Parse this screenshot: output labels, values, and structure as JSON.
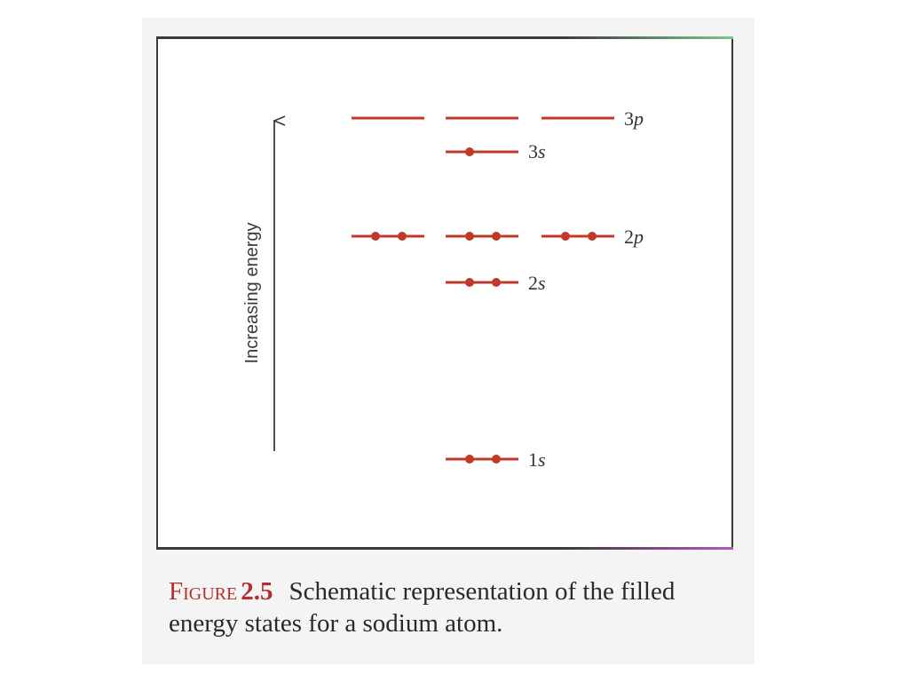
{
  "figure": {
    "axis_label": "Increasing energy",
    "levels": [
      {
        "name": "3p",
        "label_main": "3",
        "label_sub": "p",
        "sublevels": 3,
        "electrons": [
          0,
          0,
          0
        ]
      },
      {
        "name": "3s",
        "label_main": "3",
        "label_sub": "s",
        "sublevels": 1,
        "electrons": [
          1
        ]
      },
      {
        "name": "2p",
        "label_main": "2",
        "label_sub": "p",
        "sublevels": 3,
        "electrons": [
          2,
          2,
          2
        ]
      },
      {
        "name": "2s",
        "label_main": "2",
        "label_sub": "s",
        "sublevels": 1,
        "electrons": [
          2
        ]
      },
      {
        "name": "1s",
        "label_main": "1",
        "label_sub": "s",
        "sublevels": 1,
        "electrons": [
          2
        ]
      }
    ],
    "colors": {
      "level_line": "#c0392b",
      "electron": "#c0392b",
      "frame": "#3a3a3a",
      "caption_accent": "#b03030"
    }
  },
  "caption": {
    "label": "Figure",
    "number": "2.5",
    "text": "Schematic representation of the filled energy states for a sodium atom."
  }
}
